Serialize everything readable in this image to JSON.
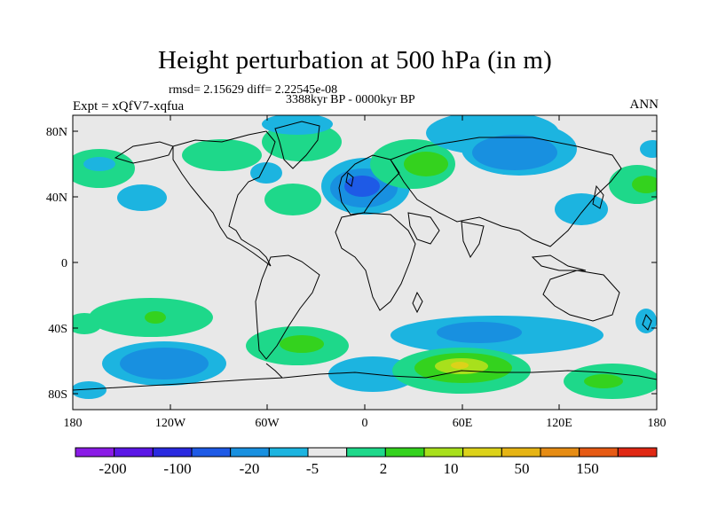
{
  "title": "Height perturbation at 500 hPa (in m)",
  "stats_line": "rmsd= 2.15629 diff= 2.22545e-08",
  "period": "3388kyr BP - 0000kyr BP",
  "experiment": "Expt = xQfV7-xqfua",
  "season": "ANN",
  "latitude_ticks": [
    "80N",
    "40N",
    "0",
    "40S",
    "80S"
  ],
  "longitude_ticks": [
    "180",
    "120W",
    "60W",
    "0",
    "60E",
    "120E",
    "180"
  ],
  "colorbar": {
    "tick_labels": [
      "-200",
      "-100",
      "-20",
      "-5",
      "2",
      "10",
      "50",
      "150"
    ],
    "colors": [
      "#8a1be6",
      "#5b17e6",
      "#2a2ae0",
      "#1e5ae6",
      "#1890e0",
      "#1cb4e0",
      "#e8e8e8",
      "#1ed88a",
      "#34d21e",
      "#a8e01c",
      "#dcd21a",
      "#e6b414",
      "#e68c14",
      "#e65a14",
      "#e02814"
    ]
  },
  "colors": {
    "background": "#e8e8e8",
    "light_blue": "#1cb4e0",
    "mid_blue": "#1890e0",
    "blue": "#1e5ae6",
    "teal": "#1ed88a",
    "green": "#34d21e",
    "lime": "#a8e01c",
    "yellow": "#dcd21a"
  }
}
